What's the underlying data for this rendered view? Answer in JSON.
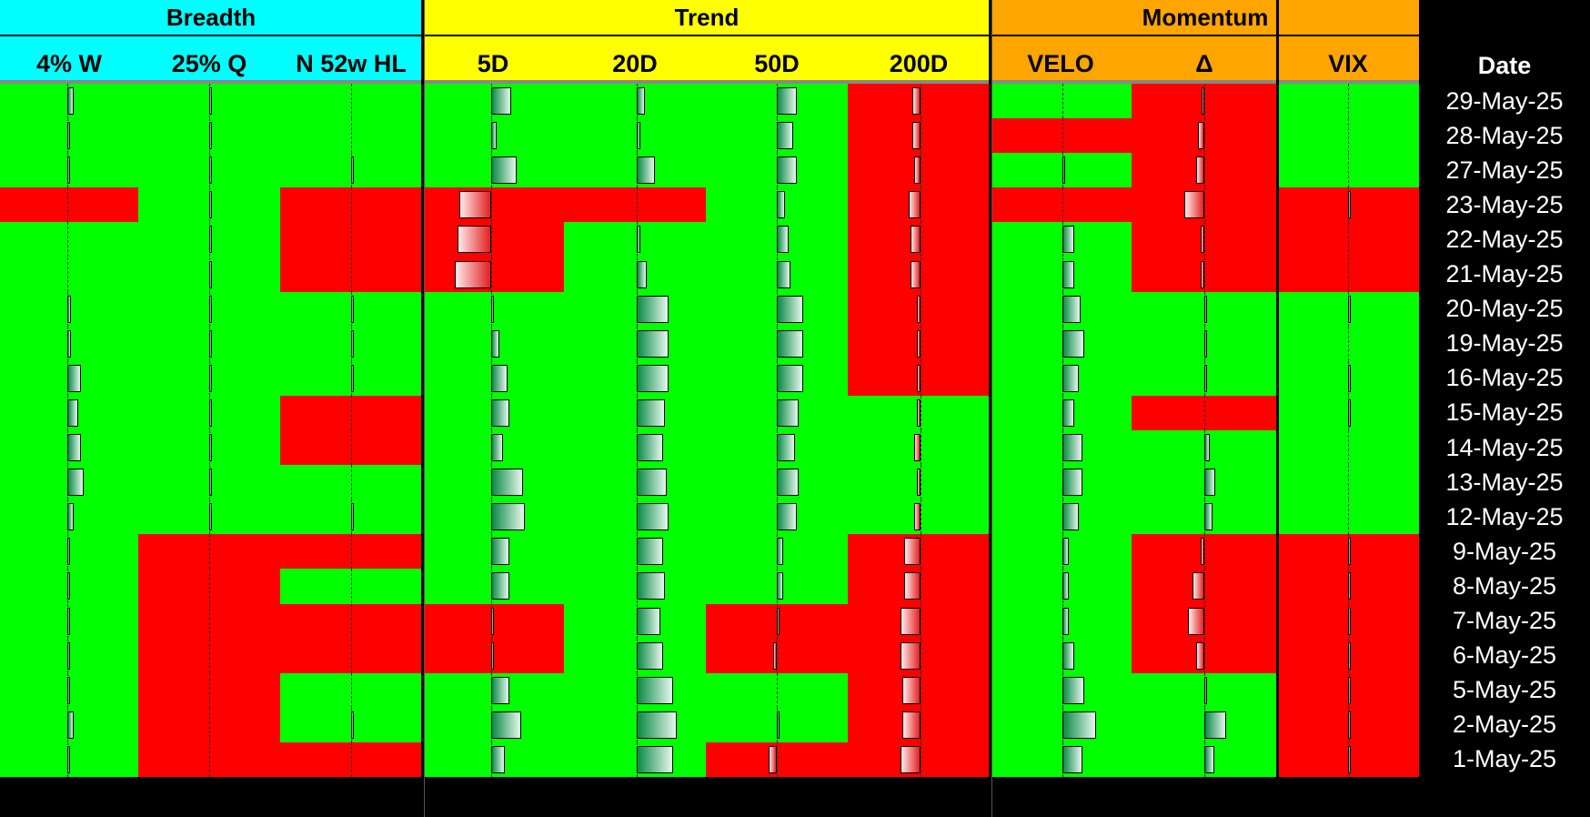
{
  "groups": [
    {
      "label": "Breadth",
      "color": "#00ffff"
    },
    {
      "label": "Trend",
      "color": "#ffff00"
    },
    {
      "label": "Momentum",
      "color": "#ffa500"
    }
  ],
  "columns": [
    "4% W",
    "25% Q",
    "N 52w HL",
    "5D",
    "20D",
    "50D",
    "200D",
    "VELO",
    "Δ",
    "VIX",
    "Date"
  ],
  "colors": {
    "green": "#00ff00",
    "red": "#ff0000",
    "header_black": "#000000"
  },
  "chart_data": {
    "type": "table",
    "note_cells": "each row: per column [state, bar value] where state g=green cell, r=red cell; bar value is relative bar length (positive extends right, negative extends left)",
    "rows": [
      {
        "date": "29-May-25",
        "cells": [
          [
            "g",
            0.3
          ],
          [
            "g",
            0.05
          ],
          [
            "g",
            0.0
          ],
          [
            "g",
            1.0
          ],
          [
            "g",
            0.4
          ],
          [
            "g",
            1.0
          ],
          [
            "r",
            -0.4
          ],
          [
            "g",
            0.0
          ],
          [
            "r",
            -0.15
          ],
          [
            "g",
            0.0
          ]
        ]
      },
      {
        "date": "28-May-25",
        "cells": [
          [
            "g",
            0.05
          ],
          [
            "g",
            0.05
          ],
          [
            "g",
            0.0
          ],
          [
            "g",
            0.25
          ],
          [
            "g",
            0.2
          ],
          [
            "g",
            0.8
          ],
          [
            "r",
            -0.4
          ],
          [
            "r",
            0.0
          ],
          [
            "r",
            -0.3
          ],
          [
            "g",
            0.0
          ]
        ]
      },
      {
        "date": "27-May-25",
        "cells": [
          [
            "g",
            0.05
          ],
          [
            "g",
            0.05
          ],
          [
            "g",
            0.05
          ],
          [
            "g",
            1.25
          ],
          [
            "g",
            0.9
          ],
          [
            "g",
            1.0
          ],
          [
            "r",
            -0.3
          ],
          [
            "g",
            0.1
          ],
          [
            "r",
            -0.4
          ],
          [
            "g",
            0.0
          ]
        ]
      },
      {
        "date": "23-May-25",
        "cells": [
          [
            "r",
            0.0
          ],
          [
            "g",
            0.05
          ],
          [
            "r",
            0.0
          ],
          [
            "r",
            -1.6
          ],
          [
            "r",
            0.0
          ],
          [
            "g",
            0.4
          ],
          [
            "r",
            -0.6
          ],
          [
            "r",
            0.0
          ],
          [
            "r",
            -1.0
          ],
          [
            "r",
            0.05
          ]
        ]
      },
      {
        "date": "22-May-25",
        "cells": [
          [
            "g",
            0.0
          ],
          [
            "g",
            0.05
          ],
          [
            "r",
            0.0
          ],
          [
            "r",
            -1.7
          ],
          [
            "g",
            0.2
          ],
          [
            "g",
            0.6
          ],
          [
            "r",
            -0.5
          ],
          [
            "g",
            0.6
          ],
          [
            "r",
            -0.2
          ],
          [
            "r",
            0.0
          ]
        ]
      },
      {
        "date": "21-May-25",
        "cells": [
          [
            "g",
            0.0
          ],
          [
            "g",
            0.05
          ],
          [
            "r",
            0.0
          ],
          [
            "r",
            -1.8
          ],
          [
            "g",
            0.5
          ],
          [
            "g",
            0.7
          ],
          [
            "r",
            -0.5
          ],
          [
            "g",
            0.6
          ],
          [
            "r",
            -0.2
          ],
          [
            "r",
            0.0
          ]
        ]
      },
      {
        "date": "20-May-25",
        "cells": [
          [
            "g",
            0.2
          ],
          [
            "g",
            0.05
          ],
          [
            "g",
            0.05
          ],
          [
            "g",
            0.1
          ],
          [
            "g",
            1.6
          ],
          [
            "g",
            1.3
          ],
          [
            "r",
            -0.2
          ],
          [
            "g",
            0.9
          ],
          [
            "g",
            0.05
          ],
          [
            "g",
            0.05
          ]
        ]
      },
      {
        "date": "19-May-25",
        "cells": [
          [
            "g",
            0.2
          ],
          [
            "g",
            0.05
          ],
          [
            "g",
            0.05
          ],
          [
            "g",
            0.4
          ],
          [
            "g",
            1.6
          ],
          [
            "g",
            1.3
          ],
          [
            "r",
            -0.2
          ],
          [
            "g",
            1.1
          ],
          [
            "g",
            0.15
          ],
          [
            "g",
            0.0
          ]
        ]
      },
      {
        "date": "16-May-25",
        "cells": [
          [
            "g",
            0.7
          ],
          [
            "g",
            0.05
          ],
          [
            "g",
            0.05
          ],
          [
            "g",
            0.8
          ],
          [
            "g",
            1.6
          ],
          [
            "g",
            1.3
          ],
          [
            "r",
            -0.2
          ],
          [
            "g",
            0.8
          ],
          [
            "g",
            0.05
          ],
          [
            "g",
            0.05
          ]
        ]
      },
      {
        "date": "15-May-25",
        "cells": [
          [
            "g",
            0.55
          ],
          [
            "g",
            0.05
          ],
          [
            "r",
            0.0
          ],
          [
            "g",
            0.9
          ],
          [
            "g",
            1.4
          ],
          [
            "g",
            1.1
          ],
          [
            "g",
            -0.2
          ],
          [
            "g",
            0.6
          ],
          [
            "r",
            0.0
          ],
          [
            "g",
            0.05
          ]
        ]
      },
      {
        "date": "14-May-25",
        "cells": [
          [
            "g",
            0.7
          ],
          [
            "g",
            0.05
          ],
          [
            "r",
            0.0
          ],
          [
            "g",
            0.6
          ],
          [
            "g",
            1.3
          ],
          [
            "g",
            0.9
          ],
          [
            "g",
            -0.3
          ],
          [
            "g",
            1.0
          ],
          [
            "g",
            0.25
          ],
          [
            "g",
            0.0
          ]
        ]
      },
      {
        "date": "13-May-25",
        "cells": [
          [
            "g",
            0.8
          ],
          [
            "g",
            0.05
          ],
          [
            "g",
            0.0
          ],
          [
            "g",
            1.6
          ],
          [
            "g",
            1.5
          ],
          [
            "g",
            1.1
          ],
          [
            "g",
            -0.2
          ],
          [
            "g",
            1.0
          ],
          [
            "g",
            0.55
          ],
          [
            "g",
            0.0
          ]
        ]
      },
      {
        "date": "12-May-25",
        "cells": [
          [
            "g",
            0.3
          ],
          [
            "g",
            0.05
          ],
          [
            "g",
            0.1
          ],
          [
            "g",
            1.7
          ],
          [
            "g",
            1.6
          ],
          [
            "g",
            1.0
          ],
          [
            "g",
            -0.3
          ],
          [
            "g",
            0.8
          ],
          [
            "g",
            0.4
          ],
          [
            "g",
            0.0
          ]
        ]
      },
      {
        "date": "9-May-25",
        "cells": [
          [
            "g",
            0.05
          ],
          [
            "r",
            0.0
          ],
          [
            "r",
            0.0
          ],
          [
            "g",
            0.9
          ],
          [
            "g",
            1.3
          ],
          [
            "g",
            0.3
          ],
          [
            "r",
            -0.8
          ],
          [
            "g",
            0.3
          ],
          [
            "r",
            -0.2
          ],
          [
            "r",
            0.05
          ]
        ]
      },
      {
        "date": "8-May-25",
        "cells": [
          [
            "g",
            0.15
          ],
          [
            "r",
            0.0
          ],
          [
            "g",
            0.0
          ],
          [
            "g",
            0.9
          ],
          [
            "g",
            1.4
          ],
          [
            "g",
            0.3
          ],
          [
            "r",
            -0.8
          ],
          [
            "g",
            0.3
          ],
          [
            "r",
            -0.6
          ],
          [
            "r",
            0.05
          ]
        ]
      },
      {
        "date": "7-May-25",
        "cells": [
          [
            "g",
            0.05
          ],
          [
            "r",
            0.0
          ],
          [
            "r",
            0.0
          ],
          [
            "r",
            0.05
          ],
          [
            "g",
            1.2
          ],
          [
            "r",
            0.05
          ],
          [
            "r",
            -1.0
          ],
          [
            "g",
            0.3
          ],
          [
            "r",
            -0.8
          ],
          [
            "r",
            0.1
          ]
        ]
      },
      {
        "date": "6-May-25",
        "cells": [
          [
            "g",
            0.05
          ],
          [
            "r",
            0.0
          ],
          [
            "r",
            0.0
          ],
          [
            "r",
            0.05
          ],
          [
            "g",
            1.3
          ],
          [
            "r",
            -0.2
          ],
          [
            "r",
            -1.0
          ],
          [
            "g",
            0.6
          ],
          [
            "r",
            -0.4
          ],
          [
            "r",
            0.1
          ]
        ]
      },
      {
        "date": "5-May-25",
        "cells": [
          [
            "g",
            0.15
          ],
          [
            "r",
            0.0
          ],
          [
            "g",
            0.0
          ],
          [
            "g",
            0.9
          ],
          [
            "g",
            1.8
          ],
          [
            "g",
            0.0
          ],
          [
            "r",
            -0.9
          ],
          [
            "g",
            1.1
          ],
          [
            "g",
            0.15
          ],
          [
            "r",
            0.1
          ]
        ]
      },
      {
        "date": "2-May-25",
        "cells": [
          [
            "g",
            0.3
          ],
          [
            "r",
            0.0
          ],
          [
            "g",
            0.05
          ],
          [
            "g",
            1.5
          ],
          [
            "g",
            2.0
          ],
          [
            "g",
            0.05
          ],
          [
            "r",
            -0.9
          ],
          [
            "g",
            1.7
          ],
          [
            "g",
            1.1
          ],
          [
            "r",
            0.1
          ]
        ]
      },
      {
        "date": "1-May-25",
        "cells": [
          [
            "g",
            0.15
          ],
          [
            "r",
            0.0
          ],
          [
            "r",
            0.0
          ],
          [
            "g",
            0.7
          ],
          [
            "g",
            1.8
          ],
          [
            "r",
            -0.4
          ],
          [
            "r",
            -1.0
          ],
          [
            "g",
            1.0
          ],
          [
            "g",
            0.5
          ],
          [
            "r",
            0.1
          ]
        ]
      }
    ]
  }
}
